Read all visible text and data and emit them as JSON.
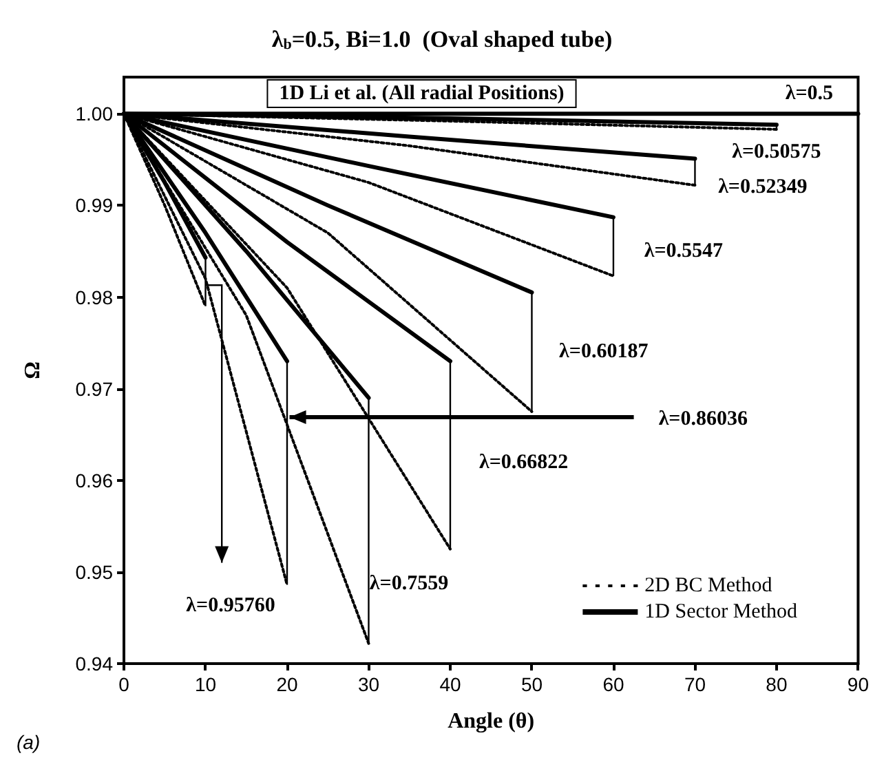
{
  "chart_data": {
    "type": "line",
    "title": "λ$_{b}$=0.5, Bi=1.0  (Oval shaped tube)",
    "xlabel": "Angle (θ)",
    "ylabel": "Ω",
    "xlim": [
      0,
      90
    ],
    "xticks": [
      0,
      10,
      20,
      30,
      40,
      50,
      60,
      70,
      80,
      90
    ],
    "ylim": [
      0.94,
      1.004
    ],
    "yticks": [
      {
        "value": 0.94,
        "label": "0.94"
      },
      {
        "value": 0.95,
        "label": "0.95"
      },
      {
        "value": 0.96,
        "label": "0.96"
      },
      {
        "value": 0.97,
        "label": "0.97"
      },
      {
        "value": 0.98,
        "label": "0.98"
      },
      {
        "value": 0.99,
        "label": "0.99"
      },
      {
        "value": 1,
        "label": "1.00"
      }
    ],
    "grid": false,
    "legend": "bottom right",
    "marker": "none",
    "series": [
      {
        "color": "#000000",
        "line_style": "solid",
        "x": [
          0,
          90
        ],
        "values": [
          1,
          1
        ]
      },
      {
        "name": "2D BC Method",
        "color": "#000000",
        "line_style": "dotted",
        "x": [
          0,
          5,
          10
        ],
        "values": [
          1,
          0.99,
          0.979
        ]
      },
      {
        "name": "1D Sector Method",
        "color": "#000000",
        "line_style": "solid",
        "x": [
          0,
          5,
          10
        ],
        "values": [
          1,
          0.9925,
          0.9843
        ]
      },
      {
        "color": "#000000",
        "line_style": "dotted",
        "x": [
          0,
          10,
          20
        ],
        "values": [
          1,
          0.982,
          0.9486
        ]
      },
      {
        "color": "#000000",
        "line_style": "solid",
        "x": [
          0,
          10,
          20
        ],
        "values": [
          1,
          0.987,
          0.973
        ]
      },
      {
        "color": "#000000",
        "line_style": "dotted",
        "x": [
          0,
          15,
          30
        ],
        "values": [
          1,
          0.978,
          0.9422
        ]
      },
      {
        "color": "#000000",
        "line_style": "solid",
        "x": [
          0,
          15,
          30
        ],
        "values": [
          1,
          0.985,
          0.969
        ]
      },
      {
        "color": "#000000",
        "line_style": "dotted",
        "x": [
          0,
          20,
          40
        ],
        "values": [
          1,
          0.981,
          0.9525
        ]
      },
      {
        "color": "#000000",
        "line_style": "solid",
        "x": [
          0,
          20,
          40
        ],
        "values": [
          1,
          0.986,
          0.973
        ]
      },
      {
        "color": "#000000",
        "line_style": "dotted",
        "x": [
          0,
          25,
          50
        ],
        "values": [
          1,
          0.987,
          0.9675
        ]
      },
      {
        "color": "#000000",
        "line_style": "solid",
        "x": [
          0,
          25,
          50
        ],
        "values": [
          1,
          0.99,
          0.9805
        ]
      },
      {
        "color": "#000000",
        "line_style": "dotted",
        "x": [
          0,
          30,
          60
        ],
        "values": [
          1,
          0.9925,
          0.9823
        ]
      },
      {
        "color": "#000000",
        "line_style": "solid",
        "x": [
          0,
          30,
          60
        ],
        "values": [
          1,
          0.9943,
          0.9887
        ]
      },
      {
        "color": "#000000",
        "line_style": "dotted",
        "x": [
          0,
          35,
          70
        ],
        "values": [
          1,
          0.9965,
          0.9922
        ]
      },
      {
        "color": "#000000",
        "line_style": "solid",
        "x": [
          0,
          35,
          70
        ],
        "values": [
          1,
          0.9975,
          0.9951
        ]
      },
      {
        "color": "#000000",
        "line_style": "dotted",
        "x": [
          0,
          40,
          80
        ],
        "values": [
          1,
          0.9992,
          0.9983
        ]
      },
      {
        "color": "#000000",
        "line_style": "solid",
        "x": [
          0,
          40,
          80
        ],
        "values": [
          1,
          0.9995,
          0.9988
        ]
      }
    ],
    "annotations": [
      "1D Li et al. (All radial Positions)",
      "λ=0.5",
      "λ=0.50575",
      "λ=0.52349",
      "λ=0.5547",
      "λ=0.60187",
      "λ=0.86036",
      "λ=0.66822",
      {
        "text": "λ=0.7559",
        "x": 40,
        "y": 0.9525
      },
      {
        "text": "λ=0.95760",
        "x": 20,
        "y": 0.9486
      },
      "(a)"
    ]
  }
}
